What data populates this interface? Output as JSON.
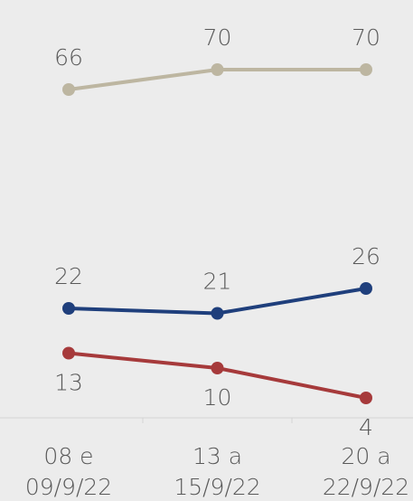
{
  "chart_data": {
    "type": "line",
    "categories": [
      [
        "08 e",
        "09/9/22"
      ],
      [
        "13 a",
        "15/9/22"
      ],
      [
        "20 a",
        "22/9/22"
      ]
    ],
    "series": [
      {
        "color": "#bdb6a1",
        "values": [
          66,
          70,
          70
        ]
      },
      {
        "color": "#1f3f7c",
        "values": [
          22,
          21,
          26
        ]
      },
      {
        "color": "#a63a3b",
        "values": [
          13,
          10,
          4
        ]
      }
    ],
    "ylim": [
      0,
      80
    ]
  }
}
